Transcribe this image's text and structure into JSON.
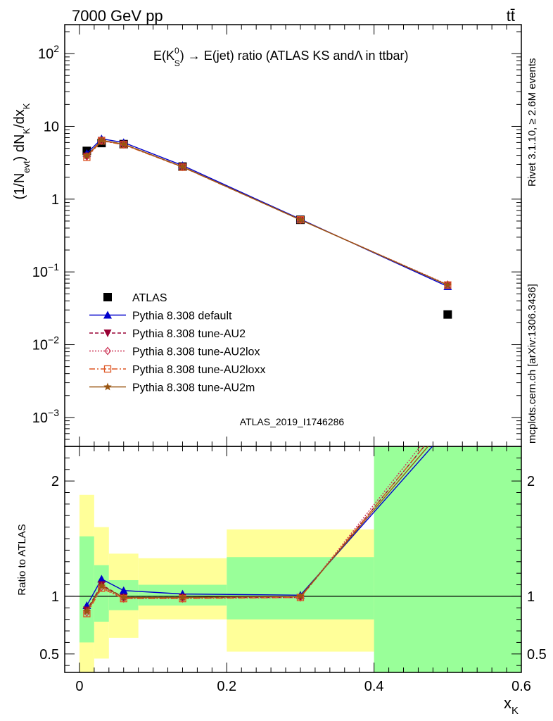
{
  "header": {
    "energy_label": "7000 GeV pp",
    "process_label": "tt̄",
    "side_version": "Rivet 3.1.10, ≥ 2.6M events",
    "side_source": "mcplots.cern.ch [arXiv:1306.3436]"
  },
  "chart_data": [
    {
      "type": "line",
      "title": "E(K⁰S) → E(jet) ratio (ATLAS KS and Λ in ttbar)",
      "title_parts": {
        "prefix": "E(K",
        "sup": "0",
        "sub": "S",
        "suffix": ") → E(jet) ratio (ATLAS KS andΛ in ttbar)"
      },
      "ylabel": "(1/N_evt) dN_K/dx_K",
      "ylabel_parts": {
        "a": "(1/N",
        "a_sub": "evt",
        "b": ") dN",
        "b_sub": "K",
        "c": "/dx",
        "c_sub": "K"
      },
      "xlim": [
        -0.02,
        0.6
      ],
      "ylim": [
        0.0004,
        250
      ],
      "yscale": "log",
      "y_ticks": [
        {
          "value": 0.001,
          "label_base": "10",
          "label_exp": "−3"
        },
        {
          "value": 0.01,
          "label_base": "10",
          "label_exp": "−2"
        },
        {
          "value": 0.1,
          "label_base": "10",
          "label_exp": "−1"
        },
        {
          "value": 1,
          "label_base": "1",
          "label_exp": ""
        },
        {
          "value": 10,
          "label_base": "10",
          "label_exp": ""
        },
        {
          "value": 100,
          "label_base": "10",
          "label_exp": "2"
        }
      ],
      "watermark": "ATLAS_2019_I1746286",
      "legend_position": "bottom-left",
      "series": [
        {
          "name": "ATLAS",
          "color": "#000000",
          "marker": "square",
          "x": [
            0.01,
            0.03,
            0.06,
            0.14,
            0.3,
            0.5
          ],
          "y": [
            4.6,
            5.9,
            5.7,
            2.8,
            0.52,
            0.026
          ]
        },
        {
          "name": "Pythia 8.308 default",
          "color": "#0000cc",
          "marker": "triangle-up",
          "dash": "",
          "x": [
            0.01,
            0.03,
            0.06,
            0.14,
            0.3,
            0.5
          ],
          "y": [
            4.25,
            6.75,
            6.0,
            2.9,
            0.53,
            0.063
          ]
        },
        {
          "name": "Pythia 8.308 tune-AU2",
          "color": "#990033",
          "marker": "triangle-down",
          "dash": "5,3",
          "x": [
            0.01,
            0.03,
            0.06,
            0.14,
            0.3,
            0.5
          ],
          "y": [
            3.9,
            6.4,
            5.7,
            2.78,
            0.52,
            0.066
          ]
        },
        {
          "name": "Pythia 8.308 tune-AU2lox",
          "color": "#cc3355",
          "marker": "diamond-open",
          "dash": "2,2",
          "x": [
            0.01,
            0.03,
            0.06,
            0.14,
            0.3,
            0.5
          ],
          "y": [
            3.85,
            6.35,
            5.65,
            2.77,
            0.52,
            0.067
          ]
        },
        {
          "name": "Pythia 8.308 tune-AU2loxx",
          "color": "#dd5522",
          "marker": "square-open",
          "dash": "8,3,2,3",
          "x": [
            0.01,
            0.03,
            0.06,
            0.14,
            0.3,
            0.5
          ],
          "y": [
            3.75,
            6.3,
            5.6,
            2.75,
            0.52,
            0.066
          ]
        },
        {
          "name": "Pythia 8.308 tune-AU2m",
          "color": "#995511",
          "marker": "star",
          "dash": "",
          "x": [
            0.01,
            0.03,
            0.06,
            0.14,
            0.3,
            0.5
          ],
          "y": [
            3.95,
            6.45,
            5.7,
            2.78,
            0.52,
            0.066
          ]
        }
      ]
    },
    {
      "type": "line",
      "ylabel": "Ratio to ATLAS",
      "xlabel": "x_K",
      "xlabel_parts": {
        "a": "x",
        "a_sub": "K"
      },
      "xlim": [
        -0.02,
        0.6
      ],
      "ylim": [
        0.34,
        2.3
      ],
      "x_ticks": [
        {
          "value": 0,
          "label": "0"
        },
        {
          "value": 0.2,
          "label": "0.2"
        },
        {
          "value": 0.4,
          "label": "0.4"
        },
        {
          "value": 0.6,
          "label": "0.6"
        }
      ],
      "y_ticks": [
        {
          "value": 0.5,
          "label": "0.5"
        },
        {
          "value": 1,
          "label": "1"
        },
        {
          "value": 2,
          "label": "2"
        }
      ],
      "bands": {
        "bins": [
          [
            0,
            0.02
          ],
          [
            0.02,
            0.04
          ],
          [
            0.04,
            0.08
          ],
          [
            0.08,
            0.2
          ],
          [
            0.2,
            0.4
          ],
          [
            0.4,
            0.6
          ]
        ],
        "yellow": [
          [
            0.3,
            1.88
          ],
          [
            0.46,
            1.6
          ],
          [
            0.64,
            1.37
          ],
          [
            0.8,
            1.33
          ],
          [
            0.52,
            1.58
          ],
          [
            0.2,
            3.0
          ]
        ],
        "green": [
          [
            0.6,
            1.52
          ],
          [
            0.78,
            1.27
          ],
          [
            0.88,
            1.14
          ],
          [
            0.92,
            1.1
          ],
          [
            0.8,
            1.34
          ],
          [
            0.2,
            3.0
          ]
        ],
        "yellow_color": "#ffff99",
        "green_color": "#99ff99"
      },
      "series": [
        {
          "name": "Pythia 8.308 default",
          "color": "#0000cc",
          "marker": "triangle-up",
          "dash": "",
          "x": [
            0.01,
            0.03,
            0.06,
            0.14,
            0.3,
            0.5
          ],
          "y": [
            0.92,
            1.15,
            1.05,
            1.02,
            1.01,
            2.45
          ]
        },
        {
          "name": "Pythia 8.308 tune-AU2",
          "color": "#990033",
          "marker": "triangle-down",
          "dash": "5,3",
          "x": [
            0.01,
            0.03,
            0.06,
            0.14,
            0.3,
            0.5
          ],
          "y": [
            0.88,
            1.1,
            0.99,
            0.99,
            0.99,
            2.55
          ]
        },
        {
          "name": "Pythia 8.308 tune-AU2lox",
          "color": "#cc3355",
          "marker": "diamond-open",
          "dash": "2,2",
          "x": [
            0.01,
            0.03,
            0.06,
            0.14,
            0.3,
            0.5
          ],
          "y": [
            0.86,
            1.08,
            0.98,
            0.98,
            0.99,
            2.6
          ]
        },
        {
          "name": "Pythia 8.308 tune-AU2loxx",
          "color": "#dd5522",
          "marker": "square-open",
          "dash": "8,3,2,3",
          "x": [
            0.01,
            0.03,
            0.06,
            0.14,
            0.3,
            0.5
          ],
          "y": [
            0.85,
            1.07,
            0.98,
            0.98,
            0.99,
            2.55
          ]
        },
        {
          "name": "Pythia 8.308 tune-AU2m",
          "color": "#995511",
          "marker": "star",
          "dash": "",
          "x": [
            0.01,
            0.03,
            0.06,
            0.14,
            0.3,
            0.5
          ],
          "y": [
            0.87,
            1.09,
            0.99,
            0.99,
            1.0,
            2.5
          ]
        }
      ]
    }
  ]
}
